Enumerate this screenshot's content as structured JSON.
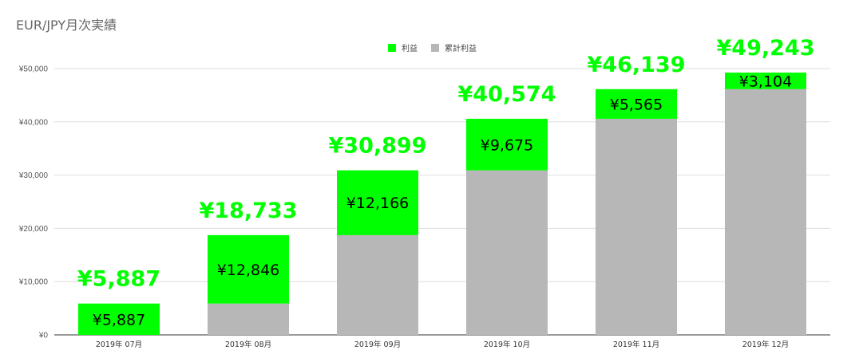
{
  "colors": {
    "profit": "#00ff00",
    "cumulative": "#b7b7b7",
    "grid": "#dddddd",
    "total_label": "#00ff00"
  },
  "chart_data": {
    "type": "bar",
    "stacked": true,
    "title": "EUR/JPY月次実績",
    "categories": [
      "2019年 07月",
      "2019年 08月",
      "2019年 09月",
      "2019年 10月",
      "2019年 11月",
      "2019年 12月"
    ],
    "series": [
      {
        "name": "累計利益",
        "values": [
          0,
          5887,
          18733,
          30899,
          40574,
          46139
        ]
      },
      {
        "name": "利益",
        "values": [
          5887,
          12846,
          12166,
          9675,
          5565,
          3104
        ]
      }
    ],
    "segment_labels": [
      "¥5,887",
      "¥12,846",
      "¥12,166",
      "¥9,675",
      "¥5,565",
      "¥3,104"
    ],
    "total_labels": [
      "¥5,887",
      "¥18,733",
      "¥30,899",
      "¥40,574",
      "¥46,139",
      "¥49,243"
    ],
    "yticks": [
      0,
      10000,
      20000,
      30000,
      40000,
      50000
    ],
    "ytick_labels": [
      "¥0",
      "¥10,000",
      "¥20,000",
      "¥30,000",
      "¥40,000",
      "¥50,000"
    ],
    "ylim": [
      0,
      50000
    ],
    "grid": true,
    "legend": {
      "position": "top",
      "entries": [
        "利益",
        "累計利益"
      ]
    }
  }
}
